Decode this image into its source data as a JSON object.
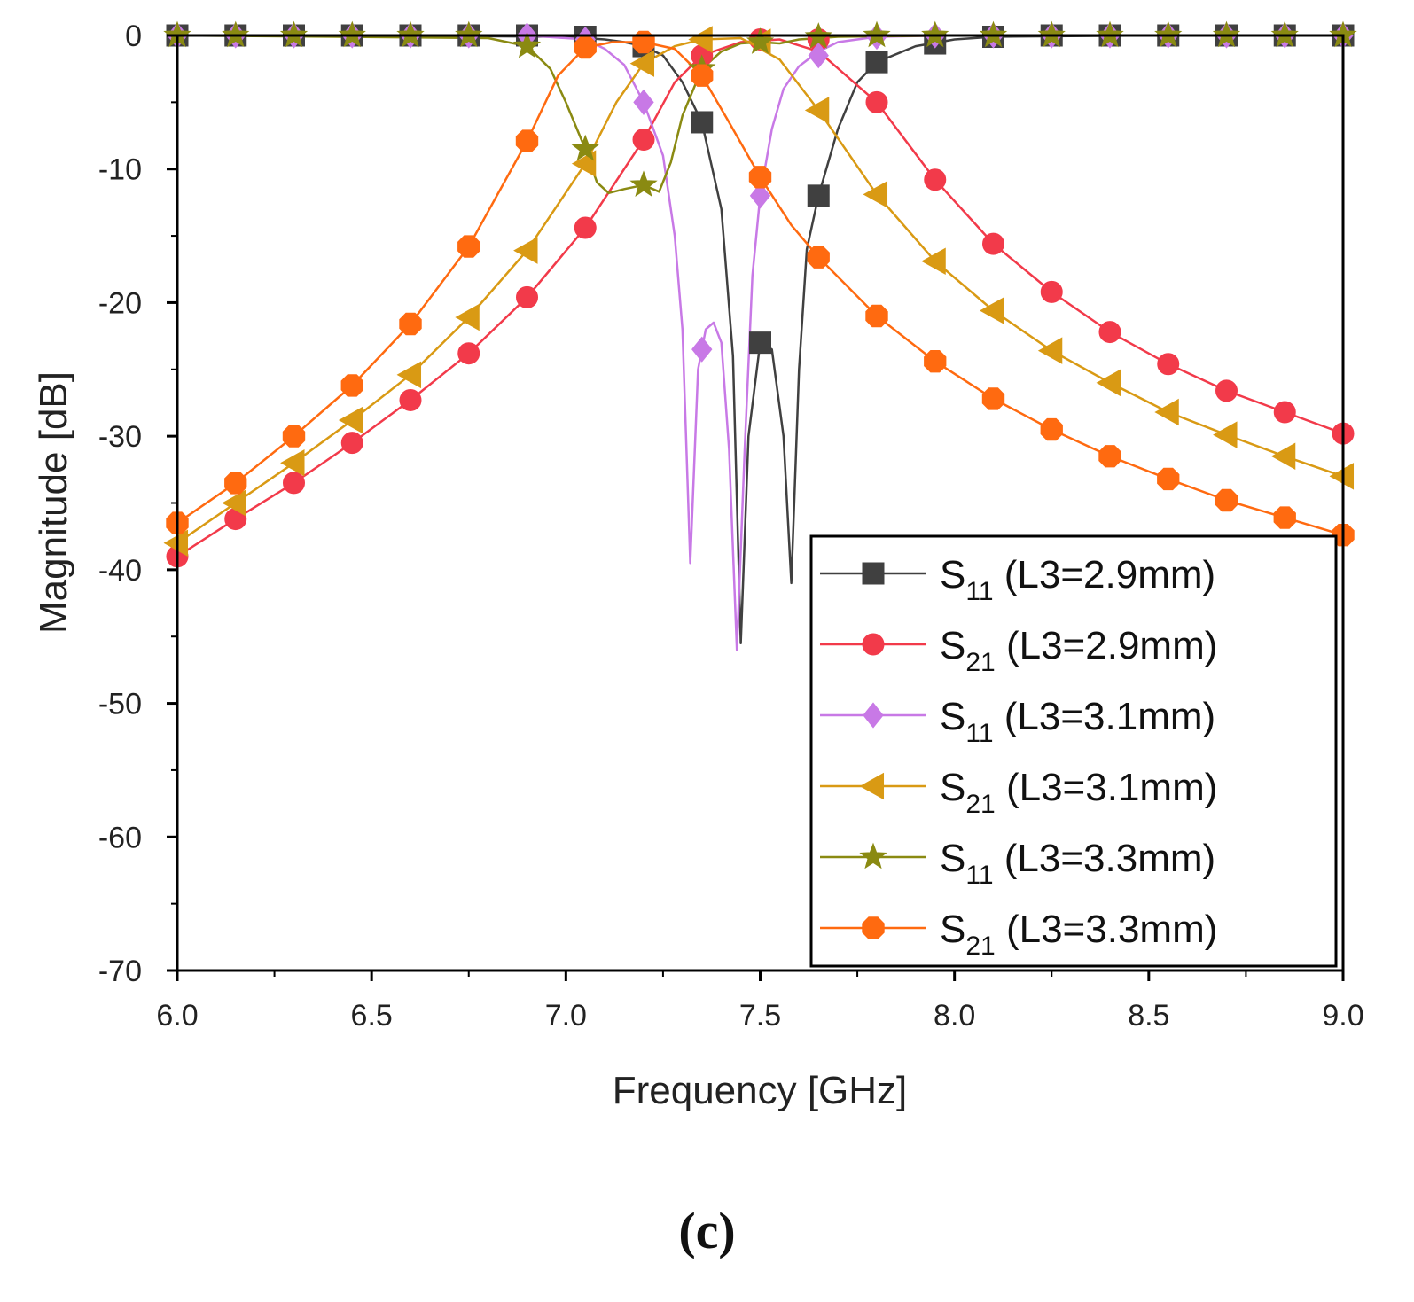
{
  "chart_data": {
    "type": "line",
    "xlabel": "Frequency [GHz]",
    "ylabel": "Magnitude [dB]",
    "xlim": [
      6.0,
      9.0
    ],
    "ylim": [
      -70,
      0
    ],
    "xticks": [
      "6.0",
      "6.5",
      "7.0",
      "7.5",
      "8.0",
      "8.5",
      "9.0"
    ],
    "xtick_values": [
      6.0,
      6.5,
      7.0,
      7.5,
      8.0,
      8.5,
      9.0
    ],
    "yticks": [
      "0",
      "-10",
      "-20",
      "-30",
      "-40",
      "-50",
      "-60",
      "-70"
    ],
    "ytick_values": [
      0,
      -10,
      -20,
      -30,
      -40,
      -50,
      -60,
      -70
    ],
    "legend_position": "bottom-right",
    "series": [
      {
        "name": "S11 (L3=2.9mm)",
        "legend_main": "S",
        "legend_sub": "11",
        "legend_rest": " (L3=2.9mm)",
        "color": "#404040",
        "marker": "square",
        "x": [
          6.0,
          6.5,
          7.0,
          7.1,
          7.15,
          7.2,
          7.25,
          7.3,
          7.35,
          7.4,
          7.43,
          7.45,
          7.47,
          7.5,
          7.53,
          7.56,
          7.58,
          7.6,
          7.62,
          7.65,
          7.7,
          7.75,
          7.8,
          7.9,
          8.0,
          8.1,
          8.5,
          9.0
        ],
        "y": [
          0,
          0,
          -0.1,
          -0.3,
          -0.5,
          -0.8,
          -1.5,
          -3.5,
          -6.5,
          -13,
          -24,
          -45.5,
          -30,
          -23,
          -23.5,
          -30,
          -41,
          -25,
          -16,
          -12,
          -7,
          -3.5,
          -2,
          -0.8,
          -0.3,
          -0.1,
          0,
          0
        ],
        "mx": [
          6.0,
          6.15,
          6.3,
          6.45,
          6.6,
          6.75,
          6.9,
          7.05,
          7.2,
          7.35,
          7.5,
          7.65,
          7.8,
          7.95,
          8.1,
          8.25,
          8.4,
          8.55,
          8.7,
          8.85,
          9.0
        ],
        "my": [
          0,
          0,
          0,
          0,
          0,
          0,
          0,
          -0.1,
          -0.8,
          -6.5,
          -23,
          -12,
          -2,
          -0.6,
          -0.1,
          0,
          0,
          0,
          0,
          0,
          0
        ]
      },
      {
        "name": "S21 (L3=2.9mm)",
        "legend_main": "S",
        "legend_sub": "21",
        "legend_rest": " (L3=2.9mm)",
        "color": "#f23a4a",
        "marker": "circle",
        "x": [
          6.0,
          6.15,
          6.3,
          6.45,
          6.6,
          6.75,
          6.9,
          7.05,
          7.2,
          7.28,
          7.35,
          7.45,
          7.55,
          7.65,
          7.8,
          7.95,
          8.1,
          8.25,
          8.4,
          8.55,
          8.7,
          8.85,
          9.0
        ],
        "y": [
          -39,
          -36.2,
          -33.5,
          -30.5,
          -27.3,
          -23.8,
          -19.6,
          -14.4,
          -7.8,
          -3.5,
          -1.5,
          -0.5,
          -0.3,
          -1.2,
          -5,
          -10.8,
          -15.6,
          -19.2,
          -22.2,
          -24.6,
          -26.6,
          -28.2,
          -29.8
        ],
        "mx": [
          6.0,
          6.15,
          6.3,
          6.45,
          6.6,
          6.75,
          6.9,
          7.05,
          7.2,
          7.35,
          7.5,
          7.65,
          7.8,
          7.95,
          8.1,
          8.25,
          8.4,
          8.55,
          8.7,
          8.85,
          9.0
        ],
        "my": [
          -39,
          -36.2,
          -33.5,
          -30.5,
          -27.3,
          -23.8,
          -19.6,
          -14.4,
          -7.8,
          -1.5,
          -0.3,
          -0.3,
          -5,
          -10.8,
          -15.6,
          -19.2,
          -22.2,
          -24.6,
          -26.6,
          -28.2,
          -29.8
        ]
      },
      {
        "name": "S11 (L3=3.1mm)",
        "legend_main": "S",
        "legend_sub": "11",
        "legend_rest": " (L3=3.1mm)",
        "color": "#c879e6",
        "marker": "diamond",
        "x": [
          6.0,
          6.9,
          7.05,
          7.1,
          7.15,
          7.2,
          7.25,
          7.28,
          7.3,
          7.32,
          7.34,
          7.36,
          7.38,
          7.4,
          7.42,
          7.44,
          7.46,
          7.48,
          7.5,
          7.53,
          7.56,
          7.6,
          7.65,
          7.7,
          7.8,
          8.0,
          9.0
        ],
        "y": [
          0,
          0,
          -0.3,
          -1,
          -2.2,
          -5,
          -9,
          -15,
          -22,
          -39.5,
          -25,
          -22,
          -21.5,
          -23,
          -31,
          -46,
          -31,
          -18,
          -12,
          -7,
          -4,
          -2.3,
          -1.2,
          -0.5,
          -0.1,
          0,
          0
        ],
        "mx": [
          6.0,
          6.15,
          6.3,
          6.45,
          6.6,
          6.75,
          6.9,
          7.05,
          7.2,
          7.35,
          7.5,
          7.65,
          7.8,
          7.95,
          8.1,
          8.25,
          8.4,
          8.55,
          8.7,
          8.85,
          9.0
        ],
        "my": [
          0,
          0,
          0,
          0,
          0,
          0,
          0,
          -0.3,
          -5,
          -23.5,
          -12,
          -1.5,
          -0.1,
          0,
          0,
          0,
          0,
          0,
          0,
          0,
          0
        ]
      },
      {
        "name": "S21 (L3=3.1mm)",
        "legend_main": "S",
        "legend_sub": "21",
        "legend_rest": " (L3=3.1mm)",
        "color": "#d99a14",
        "marker": "triangle-left",
        "x": [
          6.0,
          6.15,
          6.3,
          6.45,
          6.6,
          6.75,
          6.9,
          7.05,
          7.13,
          7.2,
          7.28,
          7.35,
          7.45,
          7.55,
          7.65,
          7.8,
          7.95,
          8.1,
          8.25,
          8.4,
          8.55,
          8.7,
          8.85,
          9.0
        ],
        "y": [
          -38,
          -35,
          -32,
          -28.8,
          -25.4,
          -21.1,
          -16.1,
          -9.6,
          -5,
          -2.1,
          -0.8,
          -0.3,
          -0.2,
          -1.8,
          -5.6,
          -11.9,
          -16.9,
          -20.6,
          -23.6,
          -26,
          -28.2,
          -29.9,
          -31.5,
          -33
        ],
        "mx": [
          6.0,
          6.15,
          6.3,
          6.45,
          6.6,
          6.75,
          6.9,
          7.05,
          7.2,
          7.35,
          7.5,
          7.65,
          7.8,
          7.95,
          8.1,
          8.25,
          8.4,
          8.55,
          8.7,
          8.85,
          9.0
        ],
        "my": [
          -38,
          -35,
          -32,
          -28.8,
          -25.4,
          -21.1,
          -16.1,
          -9.6,
          -2.1,
          -0.3,
          -0.5,
          -5.6,
          -11.9,
          -16.9,
          -20.6,
          -23.6,
          -26,
          -28.2,
          -29.9,
          -31.5,
          -33
        ]
      },
      {
        "name": "S11 (L3=3.3mm)",
        "legend_main": "S",
        "legend_sub": "11",
        "legend_rest": " (L3=3.3mm)",
        "color": "#8a8a12",
        "marker": "star",
        "x": [
          6.0,
          6.8,
          6.9,
          6.96,
          7.0,
          7.05,
          7.08,
          7.11,
          7.15,
          7.2,
          7.24,
          7.27,
          7.3,
          7.35,
          7.4,
          7.45,
          7.5,
          7.55,
          7.6,
          7.7,
          8.0,
          9.0
        ],
        "y": [
          0,
          -0.2,
          -0.8,
          -2.5,
          -5,
          -8.5,
          -11,
          -11.8,
          -11.5,
          -11.2,
          -11.7,
          -9.5,
          -6,
          -2.5,
          -1.2,
          -0.6,
          -0.5,
          -0.6,
          -0.3,
          -0.1,
          0,
          0
        ],
        "mx": [
          6.0,
          6.15,
          6.3,
          6.45,
          6.6,
          6.75,
          6.9,
          7.05,
          7.2,
          7.35,
          7.5,
          7.65,
          7.8,
          7.95,
          8.1,
          8.25,
          8.4,
          8.55,
          8.7,
          8.85,
          9.0
        ],
        "my": [
          0,
          0,
          0,
          0,
          0,
          0,
          -0.8,
          -8.5,
          -11.2,
          -2.5,
          -0.5,
          -0.1,
          0,
          0,
          0,
          0,
          0,
          0,
          0,
          0,
          0
        ]
      },
      {
        "name": "S21 (L3=3.3mm)",
        "legend_main": "S",
        "legend_sub": "21",
        "legend_rest": " (L3=3.3mm)",
        "color": "#ff6a10",
        "marker": "octagon",
        "x": [
          6.0,
          6.15,
          6.3,
          6.45,
          6.6,
          6.75,
          6.9,
          6.98,
          7.05,
          7.12,
          7.2,
          7.28,
          7.35,
          7.42,
          7.5,
          7.58,
          7.65,
          7.8,
          7.95,
          8.1,
          8.25,
          8.4,
          8.55,
          8.7,
          8.85,
          9.0
        ],
        "y": [
          -36.5,
          -33.5,
          -30,
          -26.2,
          -21.6,
          -15.8,
          -7.9,
          -3,
          -0.9,
          -0.5,
          -0.5,
          -1,
          -3,
          -6.5,
          -10.6,
          -14.2,
          -16.6,
          -21,
          -24.4,
          -27.2,
          -29.5,
          -31.5,
          -33.2,
          -34.8,
          -36.1,
          -37.4
        ],
        "mx": [
          6.0,
          6.15,
          6.3,
          6.45,
          6.6,
          6.75,
          6.9,
          7.05,
          7.2,
          7.35,
          7.5,
          7.65,
          7.8,
          7.95,
          8.1,
          8.25,
          8.4,
          8.55,
          8.7,
          8.85,
          9.0
        ],
        "my": [
          -36.5,
          -33.5,
          -30,
          -26.2,
          -21.6,
          -15.8,
          -7.9,
          -0.9,
          -0.5,
          -3,
          -10.6,
          -16.6,
          -21,
          -24.4,
          -27.2,
          -29.5,
          -31.5,
          -33.2,
          -34.8,
          -36.1,
          -37.4
        ]
      }
    ]
  },
  "caption": "(c)"
}
